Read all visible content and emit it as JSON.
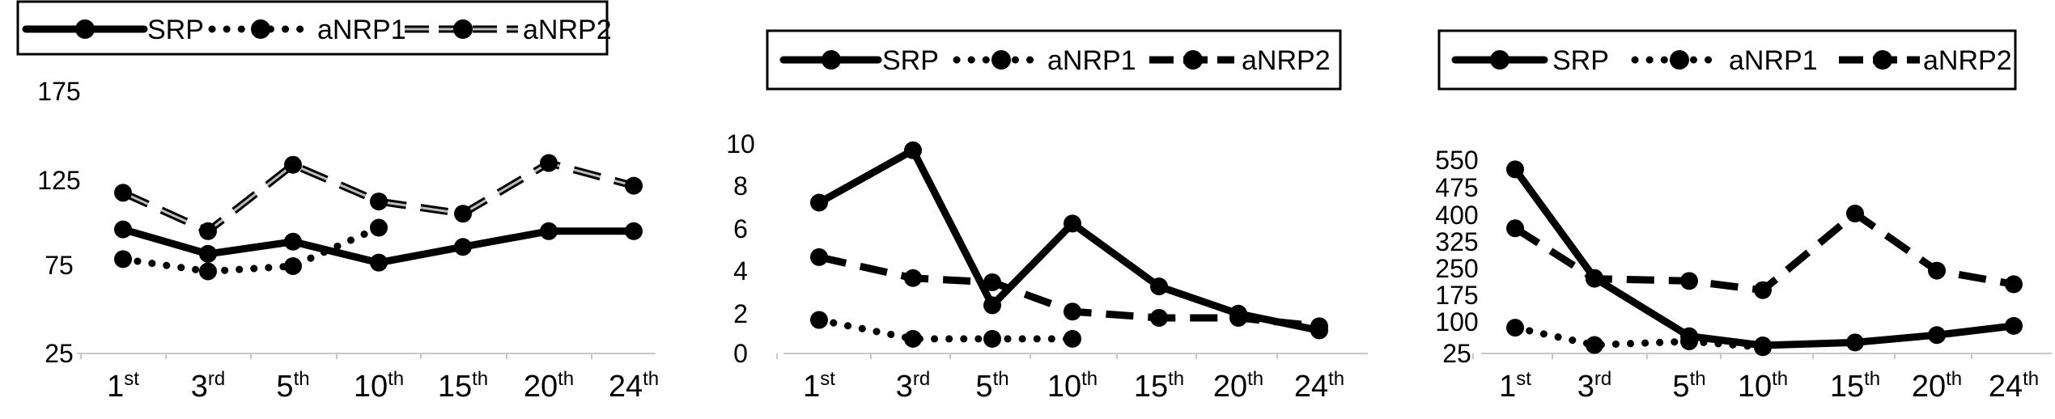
{
  "figure": {
    "background": "#ffffff",
    "series_styles": {
      "SRP": {
        "color": "#000000",
        "dash": "solid",
        "shade": "solid"
      },
      "aNRP1": {
        "color": "#000000",
        "dash": "dotted",
        "shade": "solid"
      },
      "aNRP2": {
        "color": "#000000",
        "dash": "dashed",
        "shade": "mixed"
      }
    }
  },
  "chart_data": [
    {
      "type": "line",
      "categories": [
        {
          "label": "1",
          "suffix": "st"
        },
        {
          "label": "3",
          "suffix": "rd"
        },
        {
          "label": "5",
          "suffix": "th"
        },
        {
          "label": "10",
          "suffix": "th"
        },
        {
          "label": "15",
          "suffix": "th"
        },
        {
          "label": "20",
          "suffix": "th"
        },
        {
          "label": "24",
          "suffix": "th"
        }
      ],
      "yticks": [
        "175",
        "125",
        "75",
        "25"
      ],
      "ylim": [
        25,
        175
      ],
      "grid": false,
      "legend": {
        "position": "top-left",
        "entries": [
          "SRP",
          "aNRP1",
          "aNRP2"
        ]
      },
      "series": [
        {
          "name": "SRP",
          "values": [
            96,
            82,
            89,
            77,
            86,
            95,
            95
          ]
        },
        {
          "name": "aNRP1",
          "values": [
            79,
            72,
            75,
            97,
            null,
            null,
            null
          ]
        },
        {
          "name": "aNRP2",
          "values": [
            117,
            95,
            133,
            112,
            105,
            134,
            121
          ]
        }
      ]
    },
    {
      "type": "line",
      "categories": [
        {
          "label": "1",
          "suffix": "st"
        },
        {
          "label": "3",
          "suffix": "rd"
        },
        {
          "label": "5",
          "suffix": "th"
        },
        {
          "label": "10",
          "suffix": "th"
        },
        {
          "label": "15",
          "suffix": "th"
        },
        {
          "label": "20",
          "suffix": "th"
        },
        {
          "label": "24",
          "suffix": "th"
        }
      ],
      "yticks": [
        "10",
        "8",
        "6",
        "4",
        "2",
        "0"
      ],
      "ylim": [
        0,
        10
      ],
      "grid": false,
      "legend": {
        "position": "top",
        "entries": [
          "SRP",
          "aNRP1",
          "aNRP2"
        ]
      },
      "series": [
        {
          "name": "SRP",
          "values": [
            7.2,
            9.7,
            2.3,
            6.2,
            3.2,
            1.9,
            1.1
          ]
        },
        {
          "name": "aNRP1",
          "values": [
            1.6,
            0.7,
            0.7,
            0.7,
            null,
            null,
            null
          ]
        },
        {
          "name": "aNRP2",
          "values": [
            4.6,
            3.6,
            3.4,
            2.0,
            1.7,
            1.7,
            1.3
          ]
        }
      ]
    },
    {
      "type": "line",
      "categories": [
        {
          "label": "1",
          "suffix": "st"
        },
        {
          "label": "3",
          "suffix": "rd"
        },
        {
          "label": "5",
          "suffix": "th"
        },
        {
          "label": "10",
          "suffix": "th"
        },
        {
          "label": "15",
          "suffix": "th"
        },
        {
          "label": "20",
          "suffix": "th"
        },
        {
          "label": "24",
          "suffix": "th"
        }
      ],
      "yticks": [
        "550",
        "475",
        "400",
        "325",
        "250",
        "175",
        "100",
        "25"
      ],
      "ylim": [
        25,
        550
      ],
      "grid": false,
      "legend": {
        "position": "top-right",
        "entries": [
          "SRP",
          "aNRP1",
          "aNRP2"
        ]
      },
      "series": [
        {
          "name": "SRP",
          "values": [
            525,
            230,
            72,
            47,
            55,
            75,
            100
          ]
        },
        {
          "name": "aNRP1",
          "values": [
            95,
            48,
            58,
            42,
            null,
            null,
            null
          ]
        },
        {
          "name": "aNRP2",
          "values": [
            365,
            228,
            222,
            197,
            405,
            250,
            213
          ]
        }
      ]
    }
  ]
}
